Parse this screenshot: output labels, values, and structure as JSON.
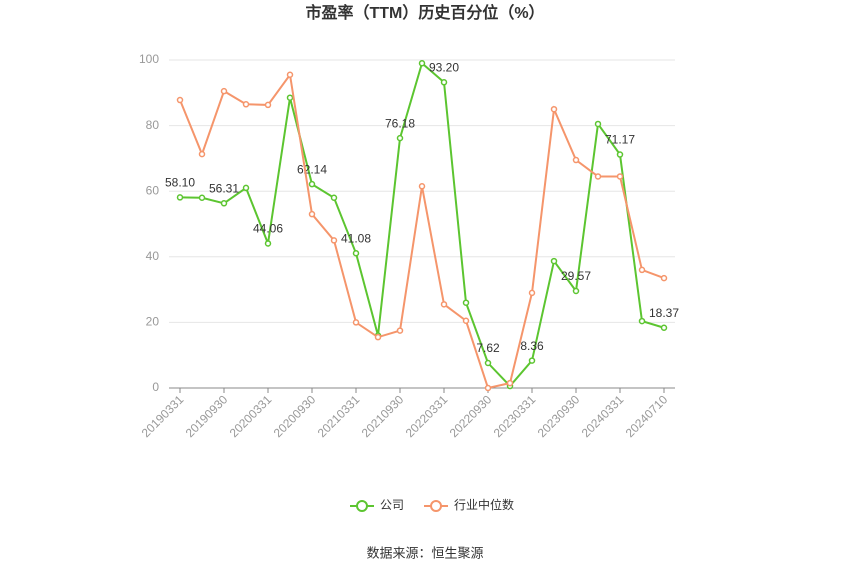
{
  "chart_data": {
    "type": "line",
    "title": "市盈率（TTM）历史百分位（%）",
    "categories": [
      "20190331",
      null,
      "20190930",
      null,
      "20200331",
      null,
      "20200930",
      null,
      "20210331",
      null,
      "20210930",
      null,
      "20220331",
      null,
      "20220930",
      null,
      "20230331",
      null,
      "20230930",
      null,
      "20240331",
      null,
      "20240710"
    ],
    "series": [
      {
        "name": "公司",
        "color": "#5cc530",
        "values": [
          58.1,
          58,
          56.31,
          61,
          44.06,
          88.5,
          62.14,
          58,
          41.08,
          16,
          76.18,
          99,
          93.2,
          26,
          7.62,
          0.6,
          8.36,
          38.7,
          29.57,
          80.5,
          71.17,
          20.4,
          18.37
        ],
        "value_labels": [
          "58.10",
          null,
          "56.31",
          null,
          "44.06",
          null,
          "62.14",
          null,
          "41.08",
          null,
          "76.18",
          null,
          "93.20",
          null,
          "7.62",
          null,
          "8.36",
          null,
          "29.57",
          null,
          "71.17",
          null,
          "18.37"
        ]
      },
      {
        "name": "行业中位数",
        "color": "#f5956b",
        "values": [
          87.8,
          71.3,
          90.5,
          86.5,
          86.3,
          95.5,
          53,
          45,
          20,
          15.5,
          17.5,
          61.5,
          25.5,
          20.5,
          0,
          1.5,
          29,
          85,
          69.5,
          64.5,
          64.5,
          36,
          33.5
        ]
      }
    ],
    "ylim": [
      0,
      100
    ],
    "yticks": [
      0,
      20,
      40,
      60,
      80,
      100
    ],
    "grid": true,
    "legend": "bottom",
    "source": "数据来源：恒生聚源"
  }
}
